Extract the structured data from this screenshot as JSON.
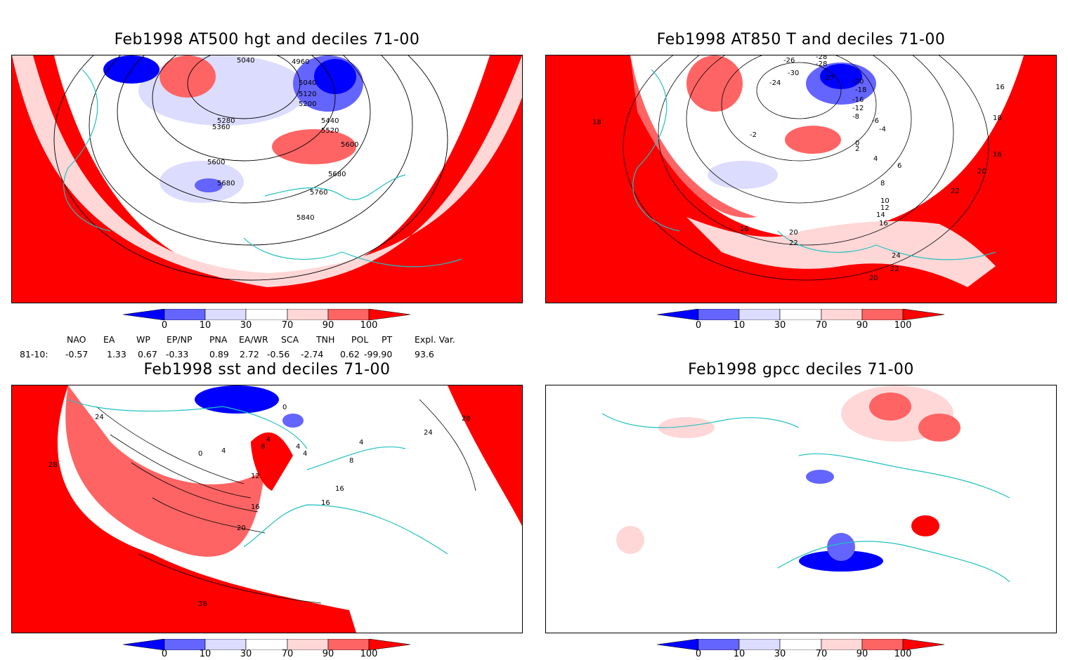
{
  "panels": [
    {
      "title": "Feb1998 AT500 hgt and deciles 71-00",
      "contour_labels": [
        "5040",
        "4960",
        "5040",
        "5120",
        "5200",
        "5280",
        "5360",
        "5440",
        "5520",
        "5600",
        "5600",
        "5680",
        "5680",
        "5760",
        "5840"
      ]
    },
    {
      "title": "Feb1998 AT850 T and deciles 71-00",
      "contour_labels": [
        "-26",
        "-28",
        "-30",
        "-28",
        "-24",
        "-27",
        "-20",
        "-18",
        "-16",
        "-12",
        "-8",
        "-6",
        "-4",
        "-2",
        "0",
        "2",
        "4",
        "6",
        "8",
        "10",
        "12",
        "14",
        "16",
        "16",
        "16",
        "18",
        "18",
        "16",
        "20",
        "20",
        "22",
        "22",
        "24",
        "22",
        "20"
      ]
    },
    {
      "title": "Feb1998 sst and deciles 71-00",
      "contour_labels": [
        "24",
        "28",
        "0",
        "0",
        "4",
        "8",
        "4",
        "4",
        "4",
        "4",
        "8",
        "12",
        "16",
        "16",
        "16",
        "20",
        "24",
        "28",
        "28"
      ]
    },
    {
      "title": "Feb1998 gpcc deciles 71-00",
      "contour_labels": []
    }
  ],
  "colorbar": {
    "tick_labels": [
      "0",
      "10",
      "30",
      "70",
      "90",
      "100"
    ],
    "colors": [
      "#0000ff",
      "#6464ff",
      "#dcdcff",
      "#ffffff",
      "#ffd7d7",
      "#ff6464",
      "#ff0000"
    ]
  },
  "teleconnection_table": {
    "headers": [
      "NAO",
      "EA",
      "WP",
      "EP/NP",
      "PNA",
      "EA/WR",
      "SCA",
      "TNH",
      "POL",
      "PT",
      "Expl. Var."
    ],
    "row_label": "81-10:",
    "values": [
      "-0.57",
      "1.33",
      "0.67",
      "-0.33",
      "0.89",
      "2.72",
      "-0.56",
      "-2.74",
      "0.62",
      "-99.90",
      "93.6"
    ]
  },
  "colors": {
    "coast": "#20c0c0",
    "strong_red": "#ff0000",
    "mid_red": "#ff6464",
    "light_red": "#ffd7d7",
    "light_blue": "#dcdcff",
    "mid_blue": "#6464ff",
    "strong_blue": "#0000ff"
  }
}
